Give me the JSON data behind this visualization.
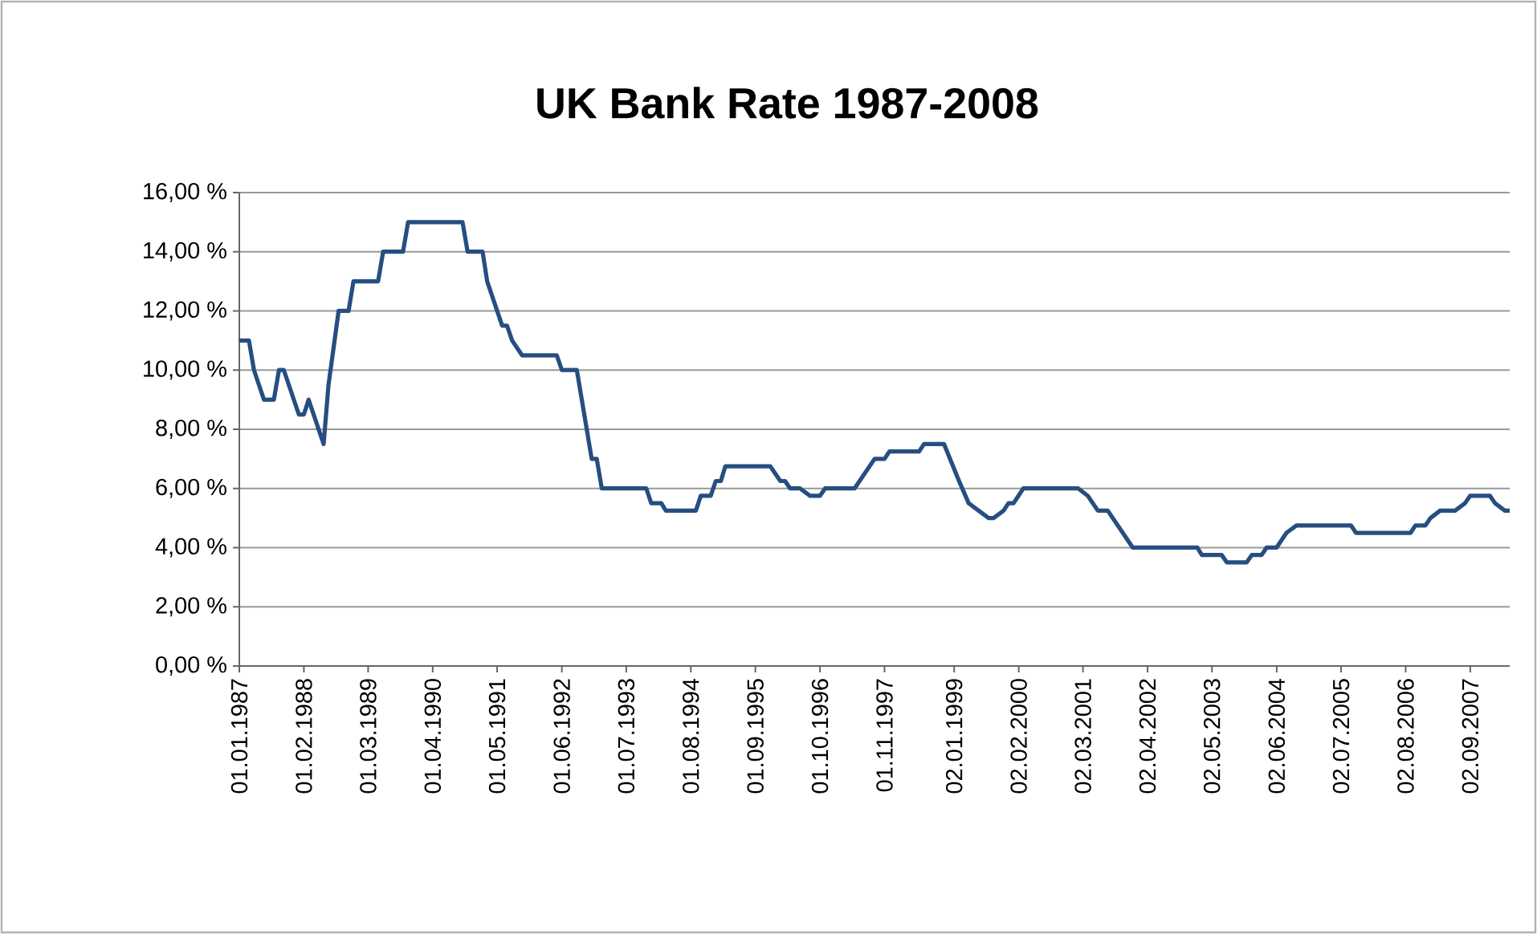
{
  "chart_data": {
    "type": "line",
    "title": "UK Bank Rate 1987-2008",
    "color": "#264e80",
    "grid": "y",
    "x": [
      "1987-01-01",
      "1987-03-01",
      "1987-04-01",
      "1987-06-01",
      "1987-08-01",
      "1987-09-01",
      "1987-10-01",
      "1988-01-01",
      "1988-02-01",
      "1988-03-01",
      "1988-06-01",
      "1988-07-01",
      "1988-09-01",
      "1988-11-01",
      "1988-12-01",
      "1989-05-01",
      "1989-06-01",
      "1989-10-01",
      "1989-11-01",
      "1990-10-01",
      "1990-11-01",
      "1991-02-01",
      "1991-03-01",
      "1991-06-01",
      "1991-07-01",
      "1991-08-01",
      "1991-10-01",
      "1992-05-01",
      "1992-06-01",
      "1992-09-01",
      "1992-12-01",
      "1993-01-01",
      "1993-02-01",
      "1993-11-01",
      "1993-12-01",
      "1994-02-01",
      "1994-03-01",
      "1994-09-01",
      "1994-10-01",
      "1994-12-01",
      "1995-01-01",
      "1995-02-01",
      "1995-03-01",
      "1995-12-01",
      "1996-02-01",
      "1996-03-01",
      "1996-04-01",
      "1996-06-01",
      "1996-08-01",
      "1996-10-01",
      "1996-11-01",
      "1997-05-01",
      "1997-09-01",
      "1997-11-01",
      "1997-12-01",
      "1998-06-01",
      "1998-07-01",
      "1998-11-01",
      "1999-02-01",
      "1999-04-01",
      "1999-06-01",
      "1999-08-01",
      "1999-09-01",
      "1999-11-01",
      "1999-12-01",
      "2000-01-01",
      "2000-03-01",
      "2001-02-01",
      "2001-04-01",
      "2001-06-01",
      "2001-08-01",
      "2001-10-01",
      "2001-11-01",
      "2002-01-01",
      "2003-02-01",
      "2003-03-01",
      "2003-07-01",
      "2003-08-01",
      "2003-12-01",
      "2004-01-01",
      "2004-03-01",
      "2004-04-01",
      "2004-06-01",
      "2004-08-01",
      "2004-10-01",
      "2005-09-01",
      "2005-10-01",
      "2006-09-01",
      "2006-10-01",
      "2006-12-01",
      "2007-01-01",
      "2007-03-01",
      "2007-06-01",
      "2007-08-01",
      "2007-09-01",
      "2008-01-01",
      "2008-02-01",
      "2008-04-01",
      "2008-05-01"
    ],
    "values": [
      11,
      11,
      10,
      9,
      9,
      10,
      10,
      8.5,
      8.5,
      9,
      7.5,
      9.5,
      12,
      12,
      13,
      13,
      14,
      14,
      15,
      15,
      14,
      14,
      13,
      11.5,
      11.5,
      11,
      10.5,
      10.5,
      10,
      10,
      7,
      7,
      6,
      6,
      5.5,
      5.5,
      5.25,
      5.25,
      5.75,
      5.75,
      6.25,
      6.25,
      6.75,
      6.75,
      6.25,
      6.25,
      6,
      6,
      5.75,
      5.75,
      6,
      6,
      7,
      7,
      7.25,
      7.25,
      7.5,
      7.5,
      6.25,
      5.5,
      5.25,
      5,
      5,
      5.25,
      5.5,
      5.5,
      6,
      6,
      5.75,
      5.25,
      5.25,
      4.75,
      4.5,
      4,
      4,
      3.75,
      3.75,
      3.5,
      3.5,
      3.75,
      3.75,
      4,
      4,
      4.5,
      4.75,
      4.75,
      4.5,
      4.5,
      4.75,
      4.75,
      5,
      5.25,
      5.25,
      5.5,
      5.75,
      5.75,
      5.5,
      5.25,
      5.25
    ],
    "xlim": [
      "1987-01-01",
      "2008-05-01"
    ],
    "xticks": [
      {
        "value": "1987-01-01",
        "label": "01.01.1987"
      },
      {
        "value": "1988-02-01",
        "label": "01.02.1988"
      },
      {
        "value": "1989-03-01",
        "label": "01.03.1989"
      },
      {
        "value": "1990-04-01",
        "label": "01.04.1990"
      },
      {
        "value": "1991-05-01",
        "label": "01.05.1991"
      },
      {
        "value": "1992-06-01",
        "label": "01.06.1992"
      },
      {
        "value": "1993-07-01",
        "label": "01.07.1993"
      },
      {
        "value": "1994-08-01",
        "label": "01.08.1994"
      },
      {
        "value": "1995-09-01",
        "label": "01.09.1995"
      },
      {
        "value": "1996-10-01",
        "label": "01.10.1996"
      },
      {
        "value": "1997-11-01",
        "label": "01.11.1997"
      },
      {
        "value": "1999-01-02",
        "label": "02.01.1999"
      },
      {
        "value": "2000-02-02",
        "label": "02.02.2000"
      },
      {
        "value": "2001-03-02",
        "label": "02.03.2001"
      },
      {
        "value": "2002-04-02",
        "label": "02.04.2002"
      },
      {
        "value": "2003-05-02",
        "label": "02.05.2003"
      },
      {
        "value": "2004-06-02",
        "label": "02.06.2004"
      },
      {
        "value": "2005-07-02",
        "label": "02.07.2005"
      },
      {
        "value": "2006-08-02",
        "label": "02.08.2006"
      },
      {
        "value": "2007-09-02",
        "label": "02.09.2007"
      }
    ],
    "ylim": [
      0,
      16
    ],
    "yticks": [
      {
        "value": 0,
        "label": "0,00 %"
      },
      {
        "value": 2,
        "label": "2,00 %"
      },
      {
        "value": 4,
        "label": "4,00 %"
      },
      {
        "value": 6,
        "label": "6,00 %"
      },
      {
        "value": 8,
        "label": "8,00 %"
      },
      {
        "value": 10,
        "label": "10,00 %"
      },
      {
        "value": 12,
        "label": "12,00 %"
      },
      {
        "value": 14,
        "label": "14,00 %"
      },
      {
        "value": 16,
        "label": "16,00 %"
      }
    ]
  }
}
